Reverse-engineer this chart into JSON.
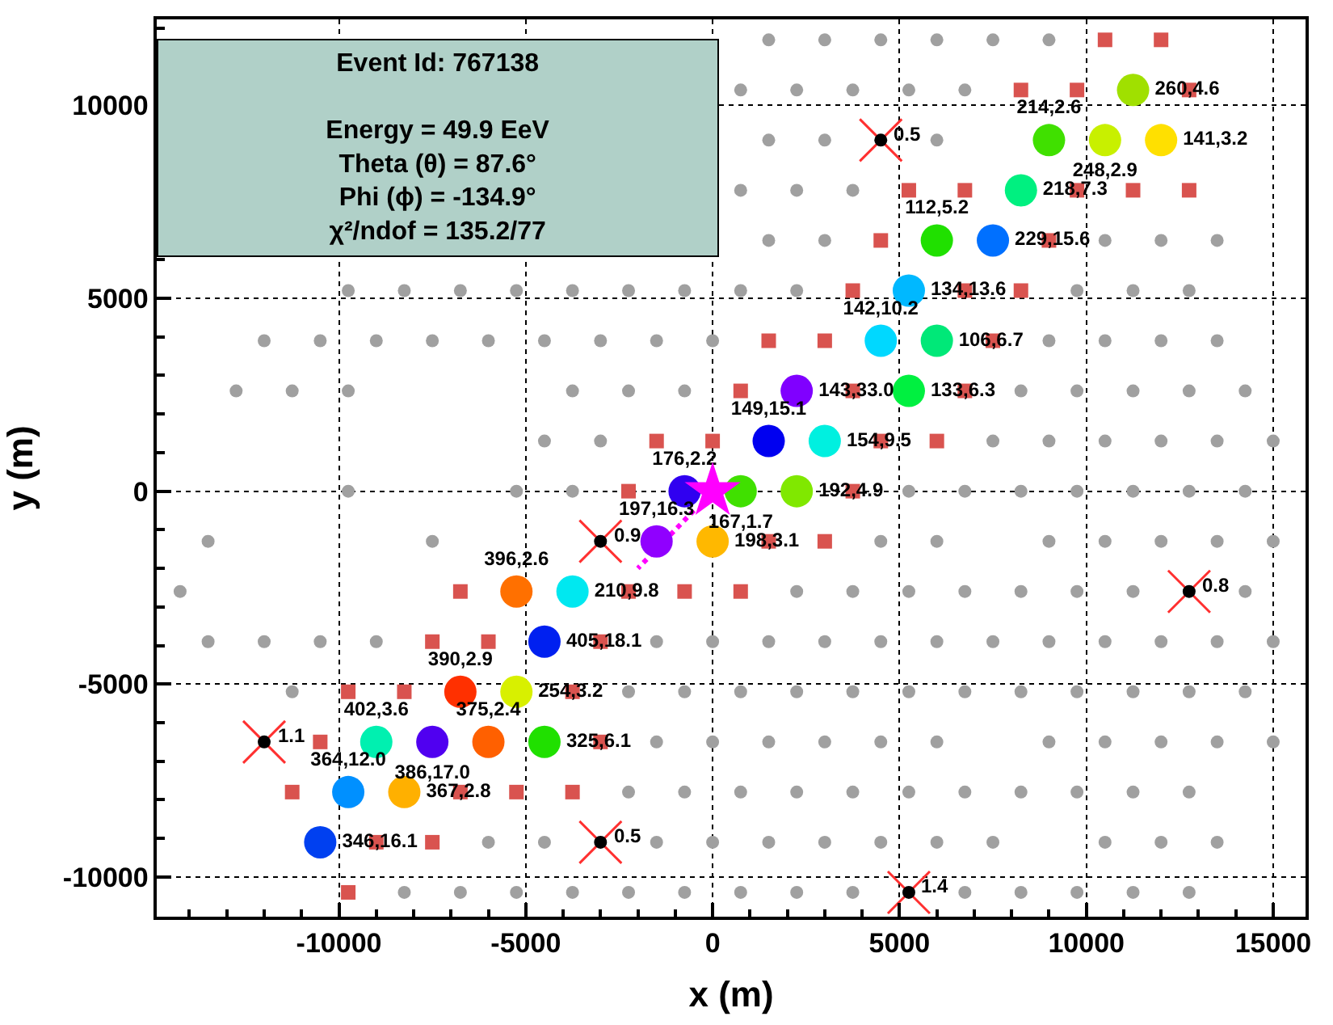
{
  "chart_data": {
    "type": "scatter",
    "xlabel": "x (m)",
    "ylabel": "y (m)",
    "xlim": [
      -14875,
      15865
    ],
    "ylim": [
      -11030,
      12230
    ],
    "xticks": [
      -10000,
      -5000,
      0,
      5000,
      10000,
      15000
    ],
    "yticks": [
      -10000,
      -5000,
      0,
      5000,
      10000
    ],
    "grid": true,
    "annotations": [
      "Event Id: 767138",
      "Energy = 49.9 EeV",
      "Theta (θ) = 87.6°",
      "Phi (ϕ) = -134.9°",
      "χ²/ndof = 135.2/77",
      {
        "text": "0.5",
        "x": 4500,
        "y": 9100
      },
      {
        "text": "0.9",
        "x": -3000,
        "y": -1300
      },
      {
        "text": "0.8",
        "x": 12750,
        "y": -2600
      },
      {
        "text": "1.1",
        "x": -12000,
        "y": -6500
      },
      {
        "text": "0.5",
        "x": -3000,
        "y": -9100
      },
      {
        "text": "1.4",
        "x": 5250,
        "y": -10400
      }
    ],
    "series": [
      {
        "color": "#a0a0a0",
        "marker": "circle",
        "x": [
          1500,
          3000,
          4500,
          6000,
          7500,
          9000
        ],
        "values": [
          11700,
          11700,
          11700,
          11700,
          11700,
          11700
        ]
      },
      {
        "color": "#a0a0a0",
        "marker": "circle",
        "x": [
          750,
          2250,
          3750,
          5250,
          6750
        ],
        "values": [
          10400,
          10400,
          10400,
          10400,
          10400
        ]
      },
      {
        "color": "#a0a0a0",
        "marker": "circle",
        "x": [
          1500,
          3000,
          6000
        ],
        "values": [
          9100,
          9100,
          9100
        ]
      },
      {
        "color": "#a0a0a0",
        "marker": "circle",
        "x": [
          750,
          2250,
          3750
        ],
        "values": [
          7800,
          7800,
          7800
        ]
      },
      {
        "color": "#a0a0a0",
        "marker": "circle",
        "x": [
          1500,
          3000,
          10500,
          12000,
          13500
        ],
        "values": [
          6500,
          6500,
          6500,
          6500,
          6500
        ]
      },
      {
        "color": "#a0a0a0",
        "marker": "circle",
        "x": [
          -9750,
          -8250,
          -6750,
          -5250,
          -3750,
          -2250,
          -750,
          750,
          2250,
          9750,
          11250,
          12750
        ],
        "values": [
          5200,
          5200,
          5200,
          5200,
          5200,
          5200,
          5200,
          5200,
          5200,
          5200,
          5200,
          5200
        ]
      },
      {
        "color": "#a0a0a0",
        "marker": "circle",
        "x": [
          -12000,
          -10500,
          -9000,
          -7500,
          -6000,
          -4500,
          -3000,
          -1500,
          0,
          9000,
          10500,
          12000,
          13500
        ],
        "values": [
          3900,
          3900,
          3900,
          3900,
          3900,
          3900,
          3900,
          3900,
          3900,
          3900,
          3900,
          3900,
          3900
        ]
      },
      {
        "color": "#a0a0a0",
        "marker": "circle",
        "x": [
          -12750,
          -11250,
          -9750,
          -3750,
          -2250,
          -750,
          8250,
          9750,
          11250,
          12750,
          14250
        ],
        "values": [
          2600,
          2600,
          2600,
          2600,
          2600,
          2600,
          2600,
          2600,
          2600,
          2600,
          2600
        ]
      },
      {
        "color": "#a0a0a0",
        "marker": "circle",
        "x": [
          -4500,
          -3000,
          7500,
          9000,
          10500,
          12000,
          13500,
          15000
        ],
        "values": [
          1300,
          1300,
          1300,
          1300,
          1300,
          1300,
          1300,
          1300
        ]
      },
      {
        "color": "#a0a0a0",
        "marker": "circle",
        "x": [
          -9750,
          -5250,
          -3750,
          5250,
          6750,
          8250,
          9750,
          11250,
          12750,
          14250
        ],
        "values": [
          0,
          0,
          0,
          0,
          0,
          0,
          0,
          0,
          0,
          0
        ]
      },
      {
        "color": "#a0a0a0",
        "marker": "circle",
        "x": [
          -13500,
          -7500,
          4500,
          6000,
          9000,
          10500,
          12000,
          13500,
          15000
        ],
        "values": [
          -1300,
          -1300,
          -1300,
          -1300,
          -1300,
          -1300,
          -1300,
          -1300,
          -1300
        ]
      },
      {
        "color": "#a0a0a0",
        "marker": "circle",
        "x": [
          -14250,
          2250,
          3750,
          5250,
          6750,
          8250,
          9750,
          11250,
          14250
        ],
        "values": [
          -2600,
          -2600,
          -2600,
          -2600,
          -2600,
          -2600,
          -2600,
          -2600,
          -2600
        ]
      },
      {
        "color": "#a0a0a0",
        "marker": "circle",
        "x": [
          -13500,
          -12000,
          -10500,
          -9000,
          -1500,
          0,
          1500,
          3000,
          4500,
          6000,
          7500,
          9000,
          10500,
          12000,
          13500,
          15000
        ],
        "values": [
          -3900,
          -3900,
          -3900,
          -3900,
          -3900,
          -3900,
          -3900,
          -3900,
          -3900,
          -3900,
          -3900,
          -3900,
          -3900,
          -3900,
          -3900,
          -3900
        ]
      },
      {
        "color": "#a0a0a0",
        "marker": "circle",
        "x": [
          -11250,
          -2250,
          -750,
          750,
          2250,
          3750,
          5250,
          6750,
          8250,
          9750,
          11250,
          12750,
          14250
        ],
        "values": [
          -5200,
          -5200,
          -5200,
          -5200,
          -5200,
          -5200,
          -5200,
          -5200,
          -5200,
          -5200,
          -5200,
          -5200,
          -5200
        ]
      },
      {
        "color": "#a0a0a0",
        "marker": "circle",
        "x": [
          -1500,
          0,
          1500,
          3000,
          4500,
          6000,
          9000,
          10500,
          12000,
          13500,
          15000
        ],
        "values": [
          -6500,
          -6500,
          -6500,
          -6500,
          -6500,
          -6500,
          -6500,
          -6500,
          -6500,
          -6500,
          -6500
        ]
      },
      {
        "color": "#a0a0a0",
        "marker": "circle",
        "x": [
          -2250,
          -750,
          750,
          2250,
          3750,
          5250,
          6750,
          8250,
          9750,
          11250,
          12750
        ],
        "values": [
          -7800,
          -7800,
          -7800,
          -7800,
          -7800,
          -7800,
          -7800,
          -7800,
          -7800,
          -7800,
          -7800
        ]
      },
      {
        "color": "#a0a0a0",
        "marker": "circle",
        "x": [
          -6000,
          -4500,
          -1500,
          0,
          1500,
          3000,
          4500,
          6000,
          7500,
          10500,
          12000,
          13500
        ],
        "values": [
          -9100,
          -9100,
          -9100,
          -9100,
          -9100,
          -9100,
          -9100,
          -9100,
          -9100,
          -9100,
          -9100,
          -9100
        ]
      },
      {
        "color": "#a0a0a0",
        "marker": "circle",
        "x": [
          -8250,
          -6750,
          -5250,
          -3750,
          -2250,
          -750,
          750,
          2250,
          3750,
          6750,
          8250,
          9750,
          11250,
          12750
        ],
        "values": [
          -10400,
          -10400,
          -10400,
          -10400,
          -10400,
          -10400,
          -10400,
          -10400,
          -10400,
          -10400,
          -10400,
          -10400,
          -10400,
          -10400
        ]
      },
      {
        "color": "#d9534f",
        "marker": "square",
        "x": [
          10500,
          12000,
          8250,
          9750,
          12750,
          5250,
          6750,
          9750,
          11250,
          12750,
          4500,
          9000,
          3750,
          6750,
          8250,
          1500,
          3000,
          7500,
          750,
          3750,
          6750,
          -1500,
          0,
          4500,
          6000,
          -2250,
          3750,
          1500,
          3000,
          -6750,
          -2250,
          -750,
          750,
          -7500,
          -6000,
          -3000,
          -9750,
          -8250,
          -3750,
          -10500,
          -3000,
          -11250,
          -6750,
          -5250,
          -3750,
          -9000,
          -7500,
          -9750
        ],
        "values": [
          11700,
          11700,
          10400,
          10400,
          10400,
          7800,
          7800,
          7800,
          7800,
          7800,
          6500,
          6500,
          5200,
          5200,
          5200,
          3900,
          3900,
          3900,
          2600,
          2600,
          2600,
          1300,
          1300,
          1300,
          1300,
          0,
          0,
          -1300,
          -1300,
          -2600,
          -2600,
          -2600,
          -2600,
          -3900,
          -3900,
          -3900,
          -5200,
          -5200,
          -5200,
          -6500,
          -6500,
          -7800,
          -7800,
          -7800,
          -7800,
          -9100,
          -9100,
          -10400
        ]
      },
      {
        "type": "line",
        "color": "#ff00ff",
        "line_style": "dotted",
        "marker": "none",
        "x": [
          -500,
          -2000
        ],
        "values": [
          -500,
          -2000
        ]
      },
      {
        "color": "#000000",
        "marker": "circle",
        "x": [
          11250,
          9000,
          10500,
          12000,
          8250,
          6000,
          7500,
          5250,
          4500,
          6000,
          2250,
          5250,
          1500,
          3000,
          -750,
          750,
          2250,
          -1500,
          0,
          -5250,
          -3750,
          -4500,
          -6750,
          -5250,
          -9000,
          -7500,
          -6000,
          -4500,
          -9750,
          -8250,
          -10500
        ],
        "values": [
          10400,
          9100,
          9100,
          9100,
          7800,
          6500,
          6500,
          5200,
          3900,
          3900,
          2600,
          2600,
          1300,
          1300,
          0,
          0,
          0,
          -1300,
          -1300,
          -2600,
          -2600,
          -3900,
          -5200,
          -5200,
          -6500,
          -6500,
          -6500,
          -6500,
          -7800,
          -7800,
          -9100
        ],
        "colors": [
          "#a0e000",
          "#40e000",
          "#c8f000",
          "#ffe000",
          "#00f080",
          "#20e000",
          "#0070ff",
          "#00b8ff",
          "#00d8ff",
          "#00e878",
          "#8000ff",
          "#00f040",
          "#0000f0",
          "#00f0e0",
          "#3000f0",
          "#40e000",
          "#80e800",
          "#9000ff",
          "#ffb800",
          "#ff7000",
          "#00e8f0",
          "#0020f0",
          "#ff3000",
          "#d8f000",
          "#00f0b0",
          "#5000f0",
          "#ff6000",
          "#20e000",
          "#0090ff",
          "#ffb000",
          "#0040f0"
        ],
        "value_labels": [
          "260,4.6",
          "214,2.6",
          "248,2.9",
          "141,3.2",
          "218,7.3",
          "112,5.2",
          "229,15.6",
          "134,13.6",
          "142,10.2",
          "106,6.7",
          "143,33.0",
          "133,6.3",
          "149,15.1",
          "154,9.5",
          "176,2.2",
          "167,1.7",
          "192,4.9",
          "197,16.3",
          "198,3.1",
          "396,2.6",
          "210,9.8",
          "405,18.1",
          "390,2.9",
          "254,3.2",
          "402,3.6",
          "386,17.0",
          "375,2.4",
          "325,6.1",
          "364,12.0",
          "367,2.8",
          "346,16.1"
        ]
      },
      {
        "color": "#ff3030",
        "marker": "cross",
        "x": [
          4500,
          -3000,
          12750,
          -12000,
          -3000,
          5250
        ],
        "values": [
          9100,
          -1300,
          -2600,
          -6500,
          -9100,
          -10400
        ]
      },
      {
        "color": "#000000",
        "marker": "circle",
        "x": [
          4500,
          -3000,
          12750,
          -12000,
          -3000,
          5250
        ],
        "values": [
          9100,
          -1300,
          -2600,
          -6500,
          -9100,
          -10400
        ]
      },
      {
        "color": "#ff00ff",
        "marker": "star",
        "x": [
          0
        ],
        "values": [
          0
        ]
      }
    ]
  }
}
